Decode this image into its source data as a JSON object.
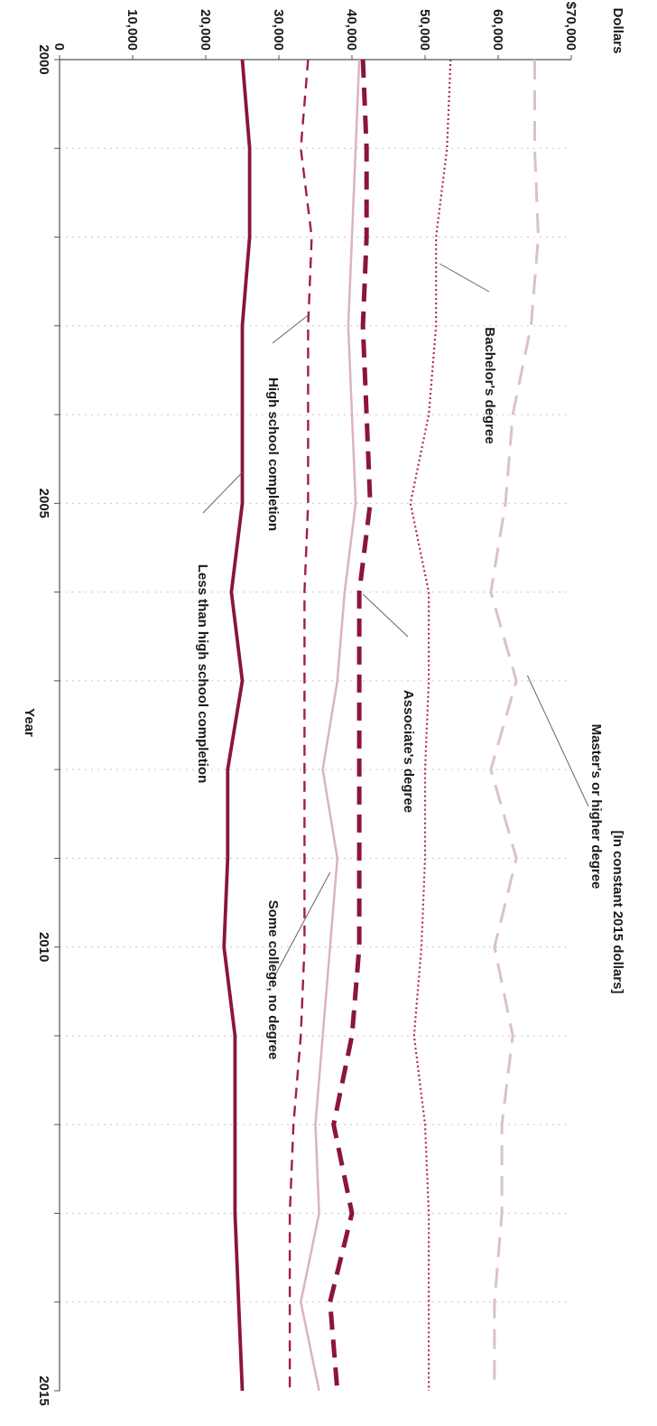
{
  "chart_data": {
    "type": "line",
    "title": "",
    "subtitle": "[In constant 2015 dollars]",
    "xlabel": "Year",
    "ylabel": "Dollars",
    "xlim": [
      2000,
      2015
    ],
    "ylim": [
      0,
      70000
    ],
    "x_ticks": [
      "2000",
      "2005",
      "2010",
      "2015"
    ],
    "y_ticks": [
      "0",
      "10,000",
      "20,000",
      "30,000",
      "40,000",
      "50,000",
      "60,000",
      "$70,000"
    ],
    "grid": "vertical dotted lines",
    "x": [
      2000,
      2001,
      2002,
      2003,
      2004,
      2005,
      2006,
      2007,
      2008,
      2009,
      2010,
      2011,
      2012,
      2013,
      2014,
      2015
    ],
    "series": [
      {
        "name": "Master's or higher degree",
        "color": "#dcc2c2",
        "style": "long-dash",
        "values": [
          65000,
          65000,
          65500,
          64500,
          62000,
          61000,
          59000,
          62500,
          59000,
          62500,
          59500,
          62000,
          60500,
          60500,
          59500,
          59500
        ]
      },
      {
        "name": "Bachelor's degree",
        "color": "#b0284e",
        "style": "dotted",
        "values": [
          53500,
          53000,
          51500,
          51500,
          50500,
          48000,
          50500,
          50500,
          50000,
          50000,
          49500,
          48500,
          50000,
          50500,
          50500,
          50500
        ]
      },
      {
        "name": "Associate's degree",
        "color": "#8b1538",
        "style": "heavy-dash",
        "values": [
          41500,
          42000,
          42000,
          41500,
          42000,
          42500,
          41000,
          41000,
          41000,
          41000,
          41000,
          40000,
          37500,
          40000,
          37000,
          38000
        ]
      },
      {
        "name": "Some college, no degree",
        "color": "#dcb4bc",
        "style": "solid",
        "values": [
          41000,
          40500,
          40000,
          39500,
          40000,
          40500,
          39000,
          38000,
          36000,
          38000,
          37000,
          36000,
          35000,
          35500,
          33000,
          35500
        ]
      },
      {
        "name": "High school completion",
        "color": "#a01e46",
        "style": "dashed",
        "values": [
          34000,
          33000,
          34500,
          34000,
          34000,
          34000,
          33500,
          33500,
          33500,
          33500,
          33500,
          33000,
          32000,
          31500,
          31500,
          31500
        ]
      },
      {
        "name": "Less than high school completion",
        "color": "#8b1538",
        "style": "solid",
        "values": [
          25000,
          26000,
          26000,
          25000,
          25000,
          25000,
          23500,
          25000,
          23000,
          23000,
          22500,
          24000,
          24000,
          24000,
          24500,
          25000
        ]
      }
    ],
    "annotations": [
      {
        "series": 0,
        "text": "Master's or higher degree"
      },
      {
        "series": 1,
        "text": "Bachelor's degree"
      },
      {
        "series": 2,
        "text": "Associate's degree"
      },
      {
        "series": 3,
        "text": "Some college, no degree"
      },
      {
        "series": 4,
        "text": "High school completion"
      },
      {
        "series": 5,
        "text": "Less than high school completion"
      }
    ]
  }
}
